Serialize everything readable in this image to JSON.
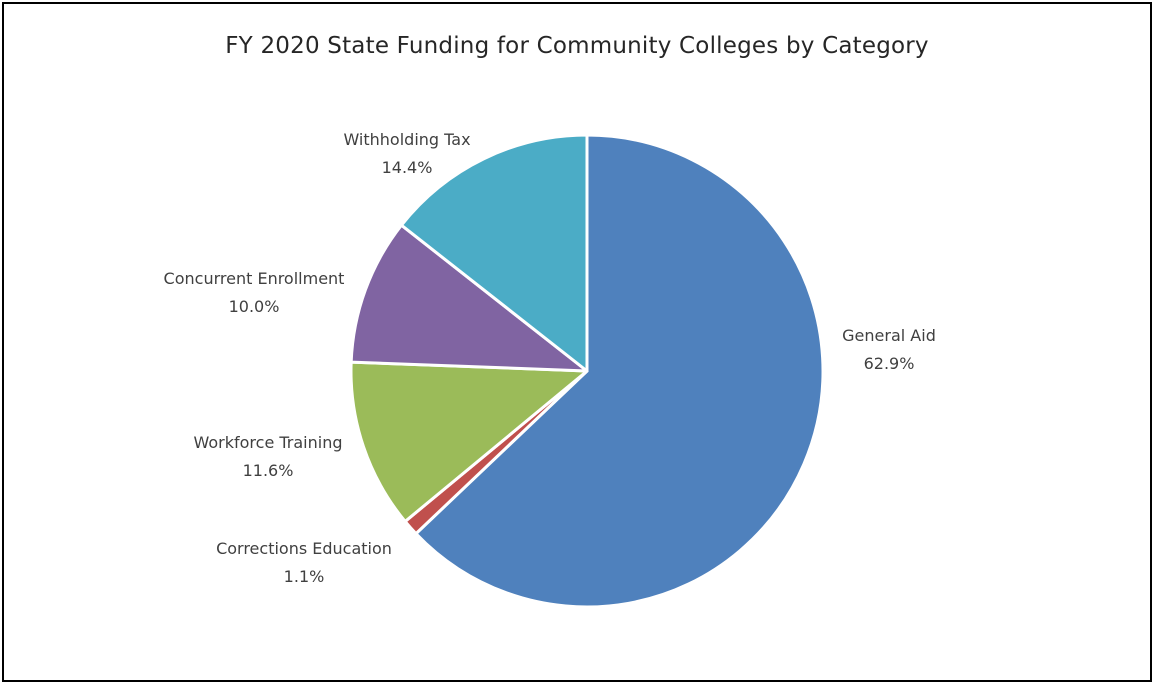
{
  "chart_data": {
    "type": "pie",
    "title": "FY 2020 State Funding for Community Colleges by Category",
    "start_angle_deg": 0,
    "direction": "clockwise",
    "slices": [
      {
        "name": "General Aid",
        "pct_label": "62.9%",
        "value": 62.9,
        "color": "#4F81BD"
      },
      {
        "name": "Corrections Education",
        "pct_label": "1.1%",
        "value": 1.1,
        "color": "#C0504D"
      },
      {
        "name": "Workforce Training",
        "pct_label": "11.6%",
        "value": 11.6,
        "color": "#9BBB59"
      },
      {
        "name": "Concurrent Enrollment",
        "pct_label": "10.0%",
        "value": 10.0,
        "color": "#8064A2"
      },
      {
        "name": "Withholding Tax",
        "pct_label": "14.4%",
        "value": 14.4,
        "color": "#4BACC6"
      }
    ]
  }
}
